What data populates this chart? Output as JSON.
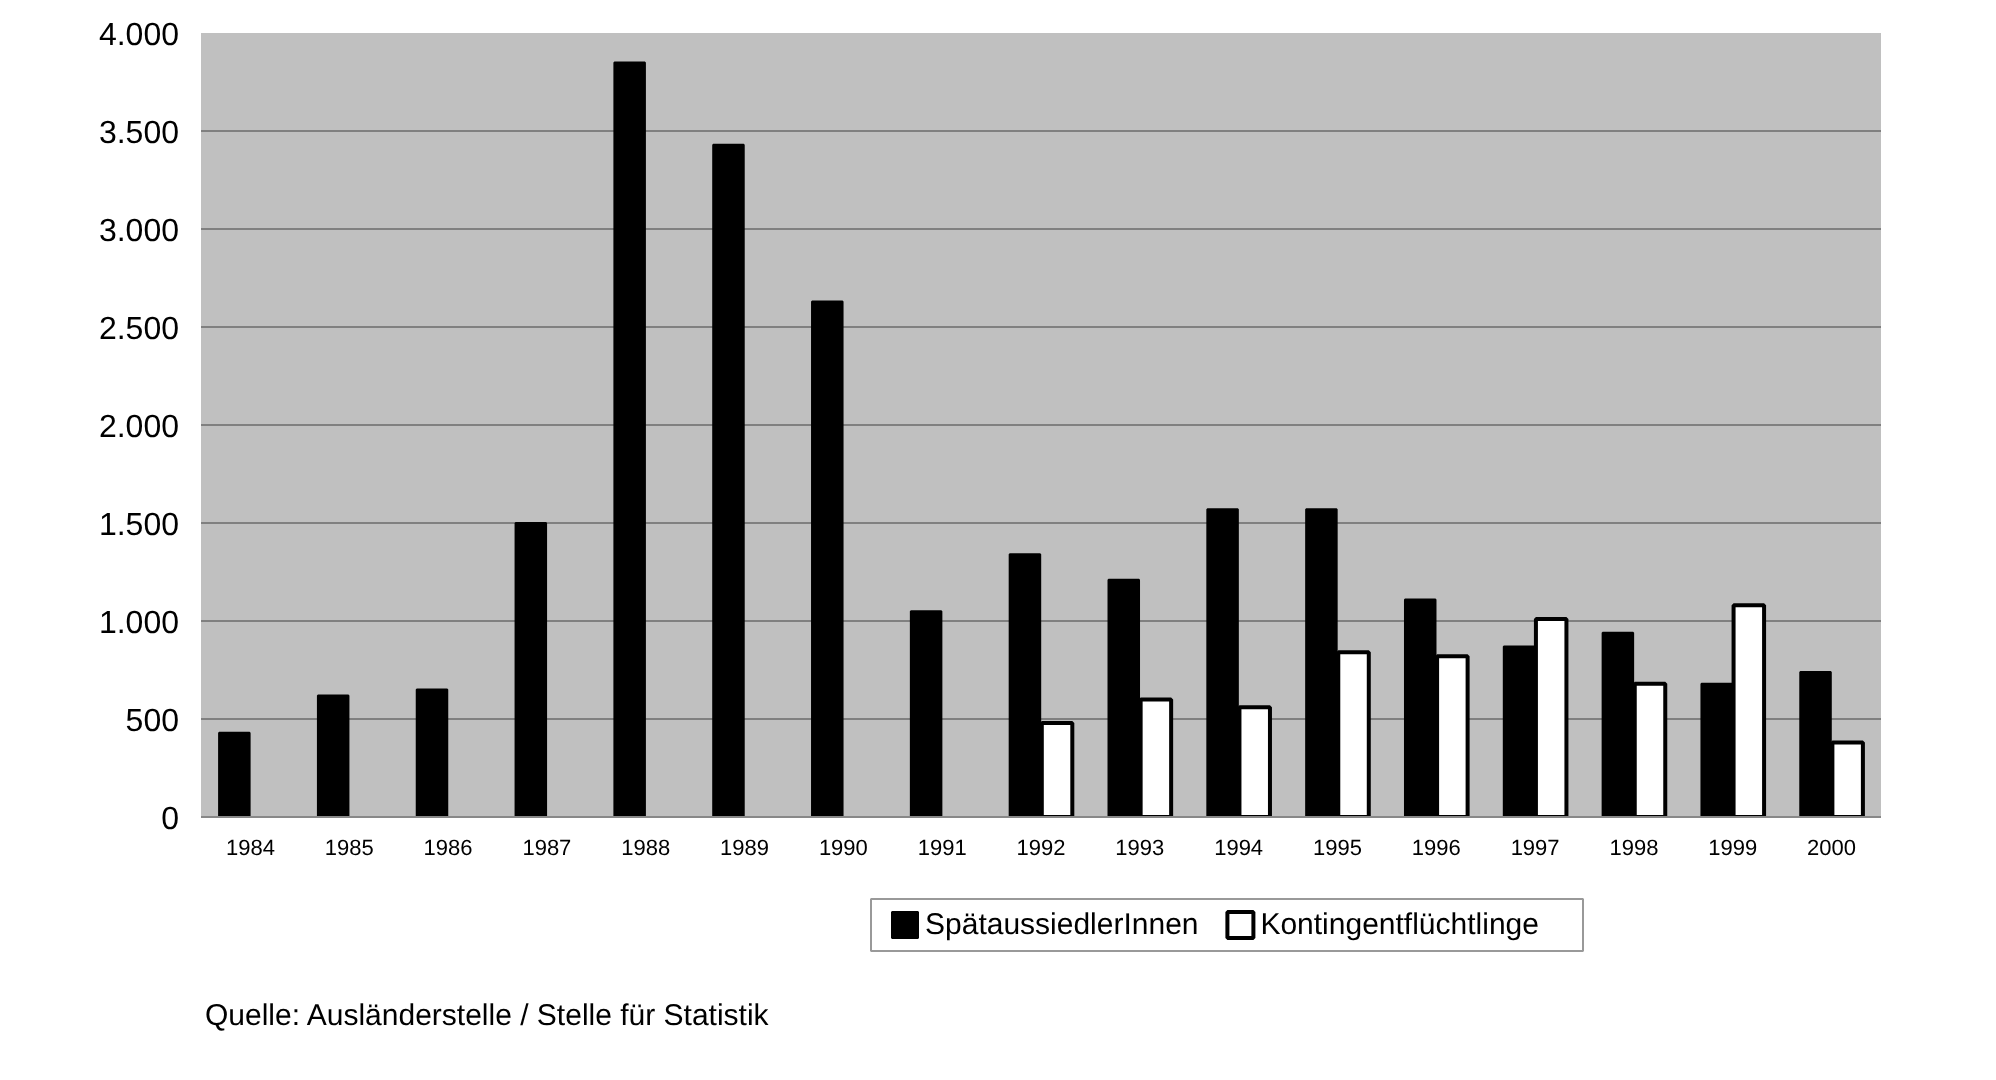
{
  "chart_data": {
    "type": "bar",
    "categories": [
      "1984",
      "1985",
      "1986",
      "1987",
      "1988",
      "1989",
      "1990",
      "1991",
      "1992",
      "1993",
      "1994",
      "1995",
      "1996",
      "1997",
      "1998",
      "1999",
      "2000"
    ],
    "series": [
      {
        "name": "SpätaussiedlerInnen",
        "color": "#000000",
        "values": [
          430,
          620,
          650,
          1500,
          3850,
          3430,
          2630,
          1050,
          1340,
          1210,
          1570,
          1570,
          1110,
          870,
          940,
          680,
          740
        ]
      },
      {
        "name": "Kontingentflüchtlinge",
        "color": "#ffffff",
        "values": [
          null,
          null,
          null,
          null,
          null,
          null,
          null,
          null,
          480,
          600,
          560,
          840,
          820,
          1010,
          680,
          1080,
          380
        ]
      }
    ],
    "ylim": [
      0,
      4000
    ],
    "yticks": [
      0,
      500,
      {
        "value": 1000,
        "label": "1.000"
      },
      {
        "value": 1500,
        "label": "1.500"
      },
      {
        "value": 2000,
        "label": "2.000"
      },
      {
        "value": 2500,
        "label": "2.500"
      },
      {
        "value": 3000,
        "label": "3.000"
      },
      {
        "value": 3500,
        "label": "3.500"
      },
      {
        "value": 4000,
        "label": "4.000"
      }
    ],
    "grid": "y",
    "legend": "bottom",
    "annotations": [
      "Quelle: Ausländerstelle / Stelle für Statistik"
    ]
  }
}
